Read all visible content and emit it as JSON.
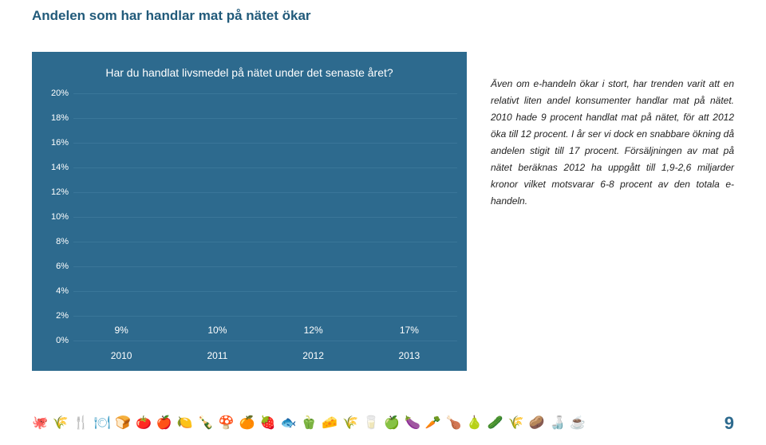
{
  "page": {
    "title": "Andelen som har handlar mat på nätet ökar",
    "page_number": "9"
  },
  "chart": {
    "type": "bar",
    "question": "Har du handlat livsmedel på nätet under det senaste året?",
    "background_color": "#2d6a8e",
    "grid_color": "#3a7699",
    "categories": [
      "2010",
      "2011",
      "2012",
      "2013"
    ],
    "values": [
      9,
      10,
      12,
      17
    ],
    "value_labels": [
      "9%",
      "10%",
      "12%",
      "17%"
    ],
    "bar_colors": [
      "#7bbfd6",
      "#7bbfd6",
      "#7bbfd6",
      "#f0b94b"
    ],
    "ylim": [
      0,
      20
    ],
    "ytick_step": 2,
    "ytick_labels": [
      "0%",
      "2%",
      "4%",
      "6%",
      "8%",
      "10%",
      "12%",
      "14%",
      "16%",
      "18%",
      "20%"
    ],
    "text_color": "#ffffff",
    "label_fontsize": 11
  },
  "body": {
    "text": "Även om e-handeln ökar i stort, har trenden varit att en relativt liten andel konsumenter handlar mat på nätet. 2010 hade 9 procent handlat mat på nätet, för att 2012 öka till 12 procent. I år ser vi dock en snabbare ökning då andelen stigit till 17 procent. Försäljningen av mat på nätet beräknas 2012 ha uppgått till 1,9-2,6 miljarder kronor vilket motsvarar 6-8 procent av den totala e-handeln."
  },
  "footer": {
    "icon_color": "#4aa3c9",
    "icons": [
      "🐙",
      "🌾",
      "🍴",
      "🍽",
      "🍞",
      "🍅",
      "🍎",
      "🍋",
      "🍾",
      "🍄",
      "🍊",
      "🍓",
      "🐟",
      "🫑",
      "🧀",
      "🌾",
      "🥛",
      "🍏",
      "🍆",
      "🥕",
      "🍗",
      "🍐",
      "🥒",
      "🌾",
      "🥔",
      "🍶",
      "☕"
    ]
  }
}
